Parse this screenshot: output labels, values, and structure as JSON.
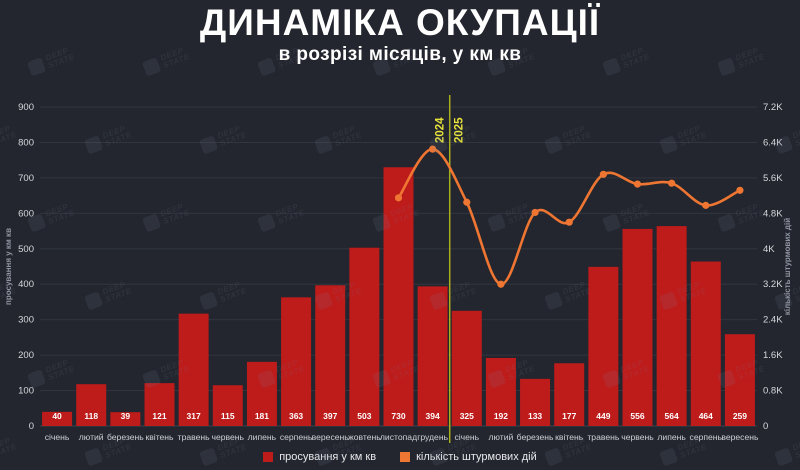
{
  "header": {
    "title": "ДИНАМІКА ОКУПАЦІЇ",
    "subtitle": "в розрізі місяців, у км кв"
  },
  "watermark": {
    "line1": "DEEP",
    "line2": "STATE"
  },
  "legend": [
    {
      "label": "просування у км кв",
      "color": "#be1b1b"
    },
    {
      "label": "кількість штурмових дій",
      "color": "#ee7632"
    }
  ],
  "chart_data": {
    "type": "bar+line dual-axis",
    "title": "ДИНАМІКА ОКУПАЦІЇ",
    "subtitle": "в розрізі місяців, у км кв",
    "categories": [
      "січень",
      "лютий",
      "березень",
      "квітень",
      "травень",
      "червень",
      "липень",
      "серпень",
      "вересень",
      "жовтень",
      "листопад",
      "грудень",
      "січень",
      "лютий",
      "березень",
      "квітень",
      "травень",
      "червень",
      "липень",
      "серпень",
      "вересень"
    ],
    "series": [
      {
        "name": "просування у км кв",
        "type": "bar",
        "axis": "left",
        "color": "#be1b1b",
        "values": [
          40,
          118,
          39,
          121,
          317,
          115,
          181,
          363,
          397,
          503,
          730,
          394,
          325,
          192,
          133,
          177,
          449,
          556,
          564,
          464,
          259
        ]
      },
      {
        "name": "кількість штурмових дій",
        "type": "line",
        "axis": "right",
        "color": "#ee7632",
        "values": [
          null,
          null,
          null,
          null,
          null,
          null,
          null,
          null,
          null,
          null,
          5150,
          6250,
          5050,
          3200,
          4820,
          4600,
          5680,
          5460,
          5480,
          4980,
          5320
        ]
      }
    ],
    "left_axis": {
      "title": "просування у км кв",
      "min": 0,
      "max": 900,
      "step": 100,
      "ticks": [
        "0",
        "100",
        "200",
        "300",
        "400",
        "500",
        "600",
        "700",
        "800",
        "900"
      ]
    },
    "right_axis": {
      "title": "кількість штурмових дій",
      "min": 0,
      "max": 7200,
      "step": 800,
      "ticks": [
        "0",
        "0.8K",
        "1.6K",
        "2.4K",
        "3.2K",
        "4K",
        "4.8K",
        "5.6K",
        "6.4K",
        "7.2K"
      ]
    },
    "year_divider": {
      "after_category_index": 11,
      "labels": [
        "2024",
        "2025"
      ],
      "line_color": "#a9ae1e",
      "label_color": "#e9e43b"
    },
    "grid": "horizontal",
    "legend_position": "bottom",
    "colors": {
      "background": "#23262e",
      "gridline": "#31353f",
      "tick_text": "#d6d8dc",
      "month_text": "#cdd0d6",
      "bar_value_text": "#ffffff",
      "axis_title_text": "#9094a0"
    }
  }
}
